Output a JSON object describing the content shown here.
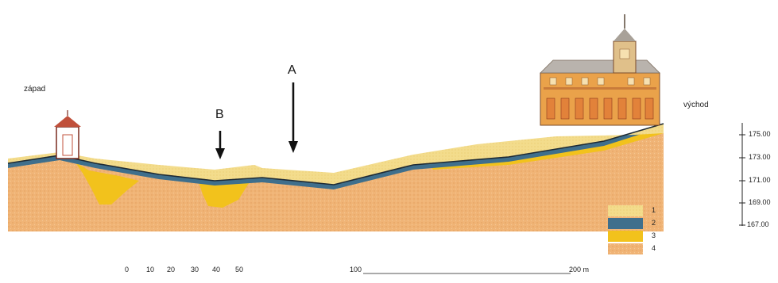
{
  "labels": {
    "west": "západ",
    "east": "východ",
    "a": "A",
    "b": "B"
  },
  "elevation_ticks": [
    "175.00",
    "173.00",
    "171.00",
    "169.00",
    "167.00"
  ],
  "scale_labels": [
    "0",
    "10",
    "20",
    "30",
    "40",
    "50",
    "100",
    "200 m"
  ],
  "legend": [
    {
      "label": "1",
      "color": "#f3dc8c"
    },
    {
      "label": "2",
      "color": "#3f6f8c"
    },
    {
      "label": "3",
      "color": "#f2c21c"
    },
    {
      "label": "4",
      "color": "#f0b476"
    }
  ]
}
